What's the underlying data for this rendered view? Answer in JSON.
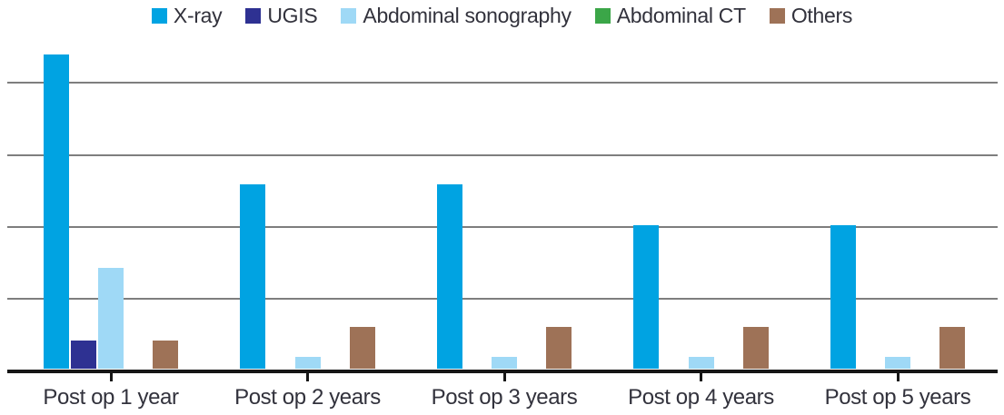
{
  "figure": {
    "background_color": "#ffffff",
    "text_color": "#32323C",
    "gridline_color": "#7E7E7E",
    "axis_color": "#161616"
  },
  "legend": {
    "position": "top-center",
    "swatch_shape": "square"
  },
  "chart_data": {
    "type": "bar",
    "grouping": "grouped",
    "title": "",
    "xlabel": "",
    "ylabel": "",
    "categories": [
      "Post op 1 year",
      "Post op 2 years",
      "Post op 3 years",
      "Post op 4 years",
      "Post op 5 years"
    ],
    "series": [
      {
        "name": "X-ray",
        "color": "#00A3E2",
        "values": [
          87.4,
          51.3,
          51.3,
          40,
          40
        ]
      },
      {
        "name": "UGIS",
        "color": "#2E3192",
        "values": [
          8,
          0,
          0,
          0,
          0
        ]
      },
      {
        "name": "Abdominal sonography",
        "color": "#9FD9F6",
        "values": [
          28,
          3.5,
          3.5,
          3.5,
          3.5
        ]
      },
      {
        "name": "Abdominal CT",
        "color": "#3BA648",
        "values": [
          0,
          0,
          0,
          0,
          0
        ]
      },
      {
        "name": "Others",
        "color": "#9E7257",
        "values": [
          8,
          11.7,
          11.7,
          11.7,
          11.7
        ]
      }
    ],
    "ylim": [
      0,
      100
    ],
    "gridline_values": [
      20,
      40,
      60,
      80
    ],
    "y_tick_labels_visible": false,
    "grid": true,
    "legend_position": "top"
  }
}
